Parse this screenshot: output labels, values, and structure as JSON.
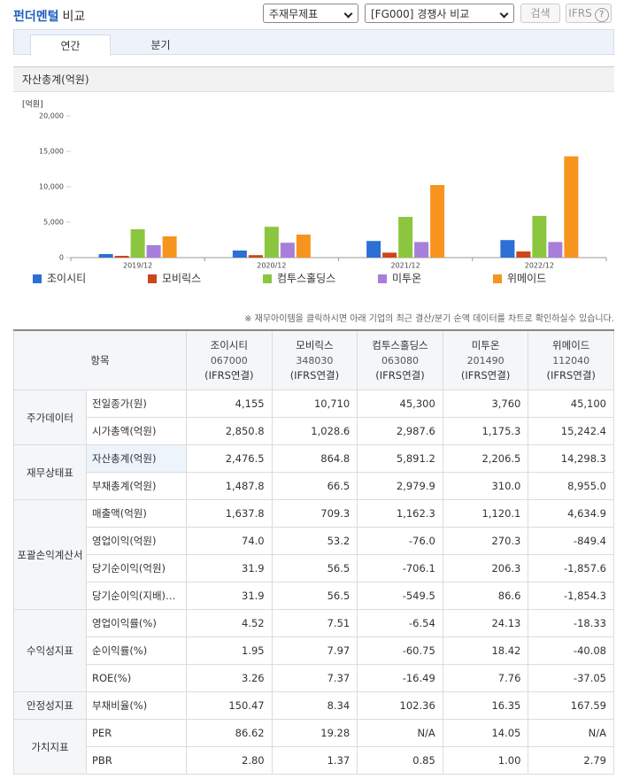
{
  "header": {
    "title": "펀더멘털",
    "title_suffix": "비교",
    "select_statement": "주재무제표",
    "select_peer": "[FG000] 경쟁사 비교",
    "search_button": "검색",
    "ifrs_button": "IFRS",
    "help_icon": "?"
  },
  "tabs": [
    "연간",
    "분기"
  ],
  "chart_data": {
    "type": "bar",
    "title": "자산총계(억원)",
    "unit_label": "[억원]",
    "categories": [
      "2019/12",
      "2020/12",
      "2021/12",
      "2022/12"
    ],
    "series": [
      {
        "name": "조이시티",
        "color": "#2d6fd4",
        "values": [
          500,
          1000,
          2350,
          2476.5
        ]
      },
      {
        "name": "모비릭스",
        "color": "#cf4418",
        "values": [
          250,
          350,
          700,
          864.8
        ]
      },
      {
        "name": "컴투스홀딩스",
        "color": "#8cc63f",
        "values": [
          4000,
          4350,
          5750,
          5891.2
        ]
      },
      {
        "name": "미투온",
        "color": "#a77fda",
        "values": [
          1750,
          2100,
          2200,
          2206.5
        ]
      },
      {
        "name": "위메이드",
        "color": "#f7941d",
        "values": [
          3000,
          3250,
          10250,
          14298.3
        ]
      }
    ],
    "ylim": [
      0,
      20000
    ],
    "yticks": [
      0,
      {
        "value": 5000,
        "label": "5,000"
      },
      {
        "value": 10000,
        "label": "10,000"
      },
      {
        "value": 15000,
        "label": "15,000"
      },
      {
        "value": 20000,
        "label": "20,000"
      }
    ],
    "grid": false
  },
  "notice": "※ 재무아이템을 클릭하시면 아래 기업의 최근 결산/분기 순액 데이터를 차트로 확인하실수 있습니다.",
  "table": {
    "header_item": "항목",
    "companies": [
      {
        "name": "조이시티",
        "code": "067000",
        "basis": "(IFRS연결)"
      },
      {
        "name": "모비릭스",
        "code": "348030",
        "basis": "(IFRS연결)"
      },
      {
        "name": "컴투스홀딩스",
        "code": "063080",
        "basis": "(IFRS연결)"
      },
      {
        "name": "미투온",
        "code": "201490",
        "basis": "(IFRS연결)"
      },
      {
        "name": "위메이드",
        "code": "112040",
        "basis": "(IFRS연결)"
      }
    ],
    "groups": [
      {
        "name": "주가데이터",
        "rows": [
          {
            "label": "전일종가(원)",
            "values": [
              "4,155",
              "10,710",
              "45,300",
              "3,760",
              "45,100"
            ]
          },
          {
            "label": "시가총액(억원)",
            "values": [
              "2,850.8",
              "1,028.6",
              "2,987.6",
              "1,175.3",
              "15,242.4"
            ]
          }
        ]
      },
      {
        "name": "재무상태표",
        "rows": [
          {
            "label": "자산총계(억원)",
            "values": [
              "2,476.5",
              "864.8",
              "5,891.2",
              "2,206.5",
              "14,298.3"
            ]
          },
          {
            "label": "부채총계(억원)",
            "values": [
              "1,487.8",
              "66.5",
              "2,979.9",
              "310.0",
              "8,955.0"
            ]
          }
        ]
      },
      {
        "name": "포괄손익계산서",
        "rows": [
          {
            "label": "매출액(억원)",
            "values": [
              "1,637.8",
              "709.3",
              "1,162.3",
              "1,120.1",
              "4,634.9"
            ]
          },
          {
            "label": "영업이익(억원)",
            "values": [
              "74.0",
              "53.2",
              "-76.0",
              "270.3",
              "-849.4"
            ]
          },
          {
            "label": "당기순이익(억원)",
            "values": [
              "31.9",
              "56.5",
              "-706.1",
              "206.3",
              "-1,857.6"
            ]
          },
          {
            "label": "당기순이익(지배)…",
            "values": [
              "31.9",
              "56.5",
              "-549.5",
              "86.6",
              "-1,854.3"
            ]
          }
        ]
      },
      {
        "name": "수익성지표",
        "rows": [
          {
            "label": "영업이익률(%)",
            "values": [
              "4.52",
              "7.51",
              "-6.54",
              "24.13",
              "-18.33"
            ]
          },
          {
            "label": "순이익률(%)",
            "values": [
              "1.95",
              "7.97",
              "-60.75",
              "18.42",
              "-40.08"
            ]
          },
          {
            "label": "ROE(%)",
            "values": [
              "3.26",
              "7.37",
              "-16.49",
              "7.76",
              "-37.05"
            ]
          }
        ]
      },
      {
        "name": "안정성지표",
        "rows": [
          {
            "label": "부채비율(%)",
            "values": [
              "150.47",
              "8.34",
              "102.36",
              "16.35",
              "167.59"
            ]
          }
        ]
      },
      {
        "name": "가치지표",
        "rows": [
          {
            "label": "PER",
            "values": [
              "86.62",
              "19.28",
              "N/A",
              "14.05",
              "N/A"
            ]
          },
          {
            "label": "PBR",
            "values": [
              "2.80",
              "1.37",
              "0.85",
              "1.00",
              "2.79"
            ]
          }
        ]
      }
    ]
  }
}
